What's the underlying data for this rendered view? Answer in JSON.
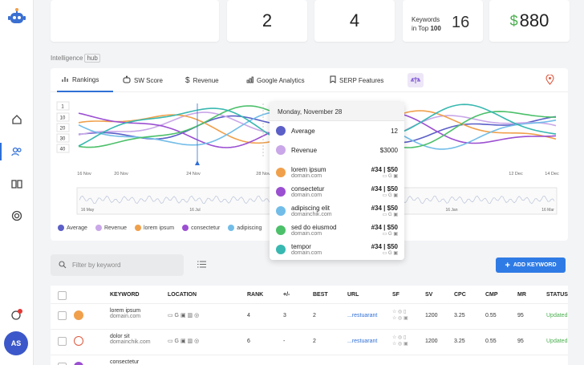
{
  "stats": {
    "card1": "2",
    "card2": "4",
    "keywords_label_line1": "Keywords",
    "keywords_label_line2": "in Top",
    "keywords_label_bold": "100",
    "keywords_value": "16",
    "money_symbol": "$",
    "money_value": "880"
  },
  "intelligence": {
    "label": "Intelligence",
    "hub": "hub"
  },
  "tabs": [
    {
      "label": "Rankings",
      "icon": "bar-chart-icon"
    },
    {
      "label": "SW Score",
      "icon": "robot-icon"
    },
    {
      "label": "Revenue",
      "icon": "dollar-icon"
    },
    {
      "label": "Google Analytics",
      "icon": "analytics-icon"
    },
    {
      "label": "SERP Features",
      "icon": "bookmark-icon"
    }
  ],
  "chart_data": {
    "type": "line",
    "y_ticks": [
      "1",
      "10",
      "20",
      "30",
      "40"
    ],
    "x_ticks": [
      "16 Nov",
      "20 Nov",
      "24 Nov",
      "28 Nov",
      "12 Dec",
      "14 Dec"
    ],
    "range_ticks": [
      "16 May",
      "16 Jul",
      "16 Jan",
      "16 Mar"
    ],
    "series": [
      {
        "name": "Average",
        "color": "#5b5fc7"
      },
      {
        "name": "Revenue",
        "color": "#c9a7e8"
      },
      {
        "name": "lorem ipsum",
        "color": "#f0a04b"
      },
      {
        "name": "consectetur",
        "color": "#9b4fd1"
      },
      {
        "name": "adipiscing",
        "color": "#72bde8"
      }
    ]
  },
  "tooltip": {
    "date": "Monday, November 28",
    "rows": [
      {
        "name": "Average",
        "value": "12",
        "color": "#5b5fc7"
      },
      {
        "name": "Revenue",
        "value": "$3000",
        "color": "#c9a7e8"
      },
      {
        "name": "lorem ipsum",
        "domain": "domain.com",
        "rank": "#34",
        "price": "$50",
        "color": "#f0a04b"
      },
      {
        "name": "consectetur",
        "domain": "domain.com",
        "rank": "#34",
        "price": "$50",
        "color": "#9b4fd1"
      },
      {
        "name": "adipiscing elit",
        "domain": "domainchik.com",
        "rank": "#34",
        "price": "$50",
        "color": "#72bde8"
      },
      {
        "name": "sed do eiusmod",
        "domain": "domain.com",
        "rank": "#34",
        "price": "$50",
        "color": "#4cc06a"
      },
      {
        "name": "tempor",
        "domain": "domain.com",
        "rank": "#34",
        "price": "$50",
        "color": "#38b8b0"
      }
    ]
  },
  "search": {
    "placeholder": "Filter by keyword"
  },
  "add_button": "ADD KEYWORD",
  "table": {
    "headers": [
      "KEYWORD",
      "LOCATION",
      "RANK",
      "+/-",
      "BEST",
      "URL",
      "SF",
      "SV",
      "CPC",
      "CMP",
      "MR",
      "STATUS"
    ],
    "rows": [
      {
        "keyword": "lorem ipsum",
        "domain": "domain.com",
        "rank": "4",
        "change": "3",
        "best": "2",
        "url": "...restuarant",
        "sv": "1200",
        "cpc": "3.25",
        "cmp": "0.55",
        "mr": "95",
        "status": "Updated",
        "dot": "#f0a04b"
      },
      {
        "keyword": "dolor sit",
        "domain": "domainchik.com",
        "rank": "6",
        "change": "-",
        "best": "2",
        "url": "...restuarant",
        "sv": "1200",
        "cpc": "3.25",
        "cmp": "0.55",
        "mr": "95",
        "status": "Updated",
        "dot": "#ffffff"
      },
      {
        "keyword": "consectetur",
        "domain": "",
        "rank": "",
        "change": "",
        "best": "",
        "url": "",
        "sv": "",
        "cpc": "",
        "cmp": "",
        "mr": "",
        "status": "",
        "dot": "#9b4fd1"
      }
    ]
  },
  "user": {
    "initials": "AS"
  }
}
